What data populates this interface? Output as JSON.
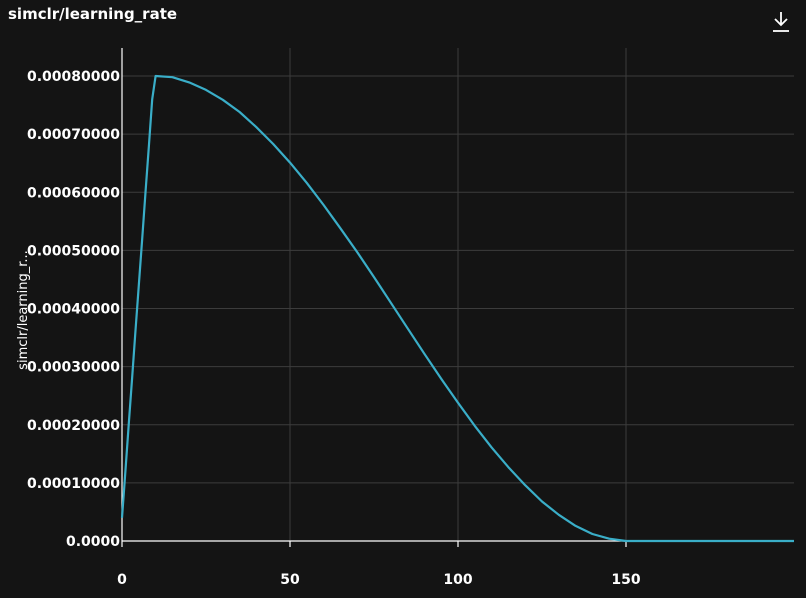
{
  "panel": {
    "title": "simclr/learning_rate",
    "download_icon": "download-icon"
  },
  "chart_data": {
    "type": "line",
    "title": "simclr/learning_rate",
    "xlabel": "",
    "ylabel": "simclr/learning_r...",
    "xlim": [
      0,
      200
    ],
    "ylim": [
      0,
      0.0008
    ],
    "x_ticks": [
      0,
      50,
      100,
      150
    ],
    "x_tick_labels": [
      "0",
      "50",
      "100",
      "150"
    ],
    "y_ticks": [
      0,
      0.0001,
      0.0002,
      0.0003,
      0.0004,
      0.0005,
      0.0006,
      0.0007,
      0.0008
    ],
    "y_tick_labels": [
      "0.0000",
      "0.00010000",
      "0.00020000",
      "0.00030000",
      "0.00040000",
      "0.00050000",
      "0.00060000",
      "0.00070000",
      "0.00080000"
    ],
    "grid": true,
    "series": [
      {
        "color": "#3aaec8",
        "x": [
          0,
          1,
          2,
          3,
          4,
          5,
          6,
          7,
          8,
          9,
          10,
          15,
          20,
          25,
          30,
          35,
          40,
          45,
          50,
          55,
          60,
          65,
          70,
          75,
          80,
          85,
          90,
          95,
          100,
          105,
          110,
          115,
          120,
          125,
          130,
          135,
          140,
          145,
          150,
          155,
          160,
          165,
          170,
          175,
          180,
          185,
          190,
          195,
          200
        ],
        "y": [
          4e-05,
          0.00012,
          0.0002,
          0.00028,
          0.00036,
          0.00044,
          0.00052,
          0.0006,
          0.00068,
          0.00076,
          0.0008,
          0.000798,
          0.000789,
          0.000776,
          0.000759,
          0.000738,
          0.000712,
          0.000683,
          0.000651,
          0.000616,
          0.000578,
          0.000538,
          0.000497,
          0.000454,
          0.00041,
          0.000366,
          0.000322,
          0.000279,
          0.000238,
          0.000198,
          0.000161,
          0.000127,
          9.6e-05,
          6.8e-05,
          4.5e-05,
          2.6e-05,
          1.2e-05,
          4e-06,
          0.0,
          0.0,
          0.0,
          0.0,
          0.0,
          0.0,
          0.0,
          0.0,
          0.0,
          0.0,
          0.0
        ]
      }
    ]
  }
}
